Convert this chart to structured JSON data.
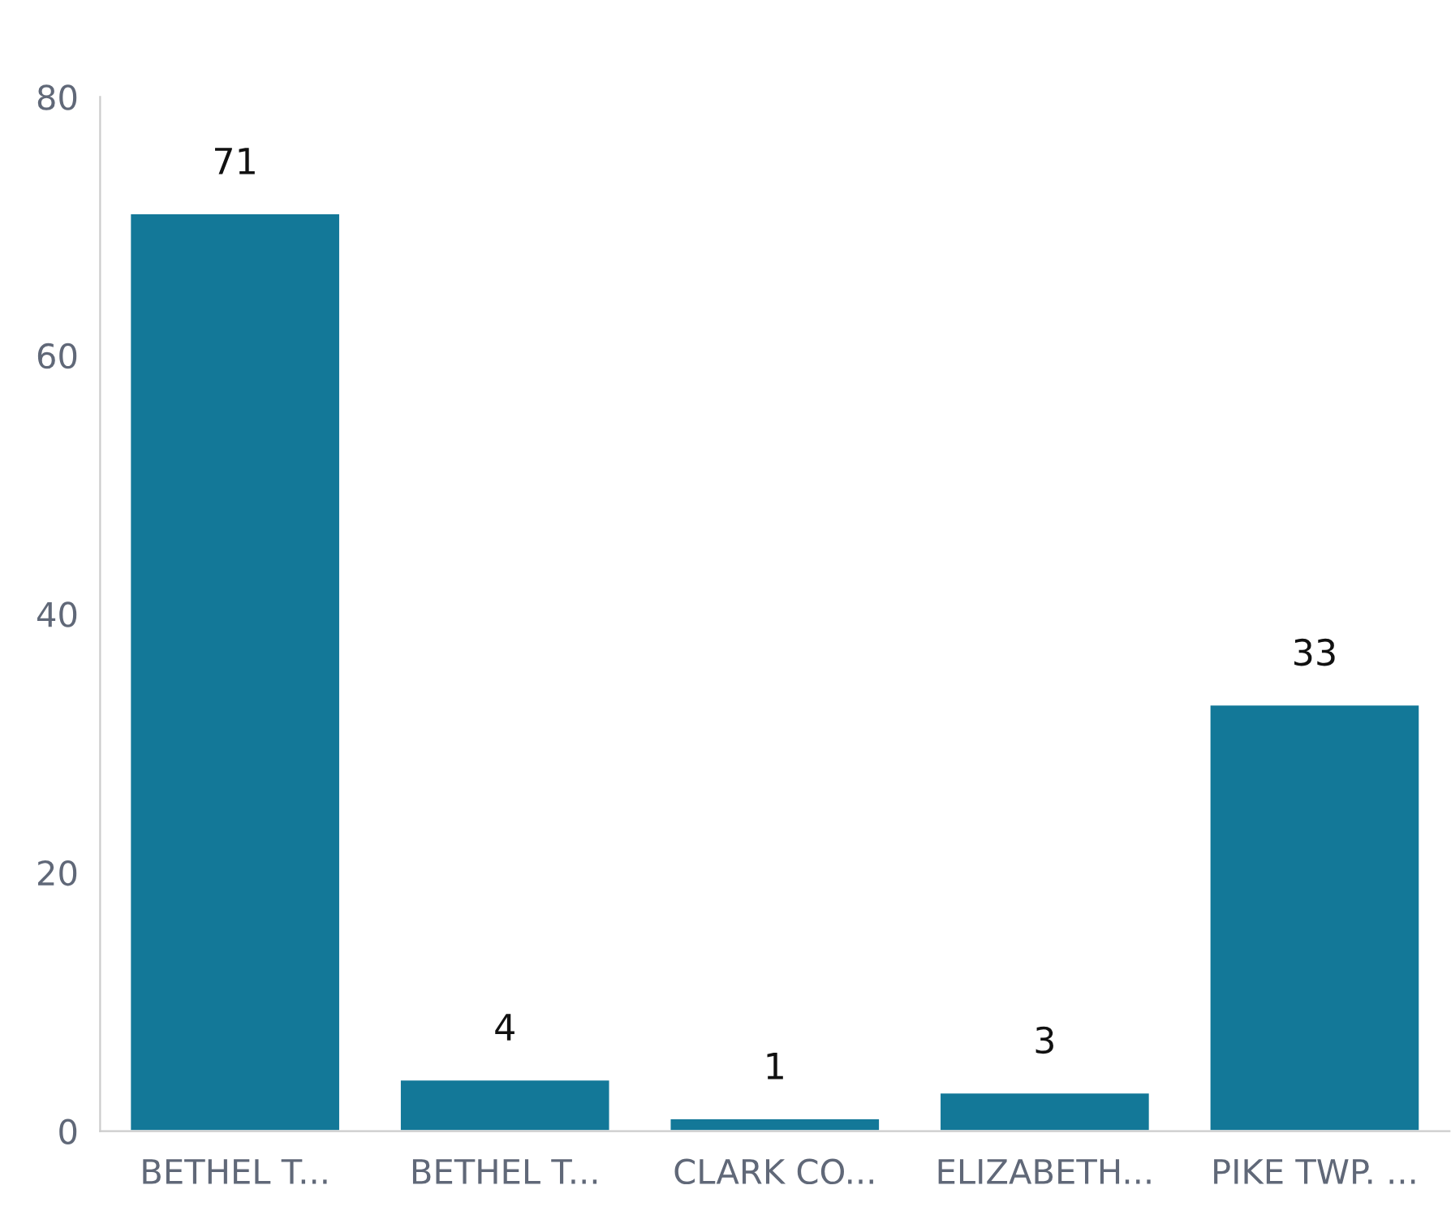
{
  "chart_data": {
    "type": "bar",
    "categories": [
      "BETHEL T...",
      "BETHEL T...",
      "CLARK CO...",
      "ELIZABETH...",
      "PIKE TWP. ..."
    ],
    "values": [
      71,
      4,
      1,
      3,
      33
    ],
    "color": "#137898",
    "ylim": [
      0,
      80
    ],
    "yticks": [
      0,
      20,
      40,
      60,
      80
    ],
    "data_labels": true,
    "grid": false,
    "legend": false
  }
}
